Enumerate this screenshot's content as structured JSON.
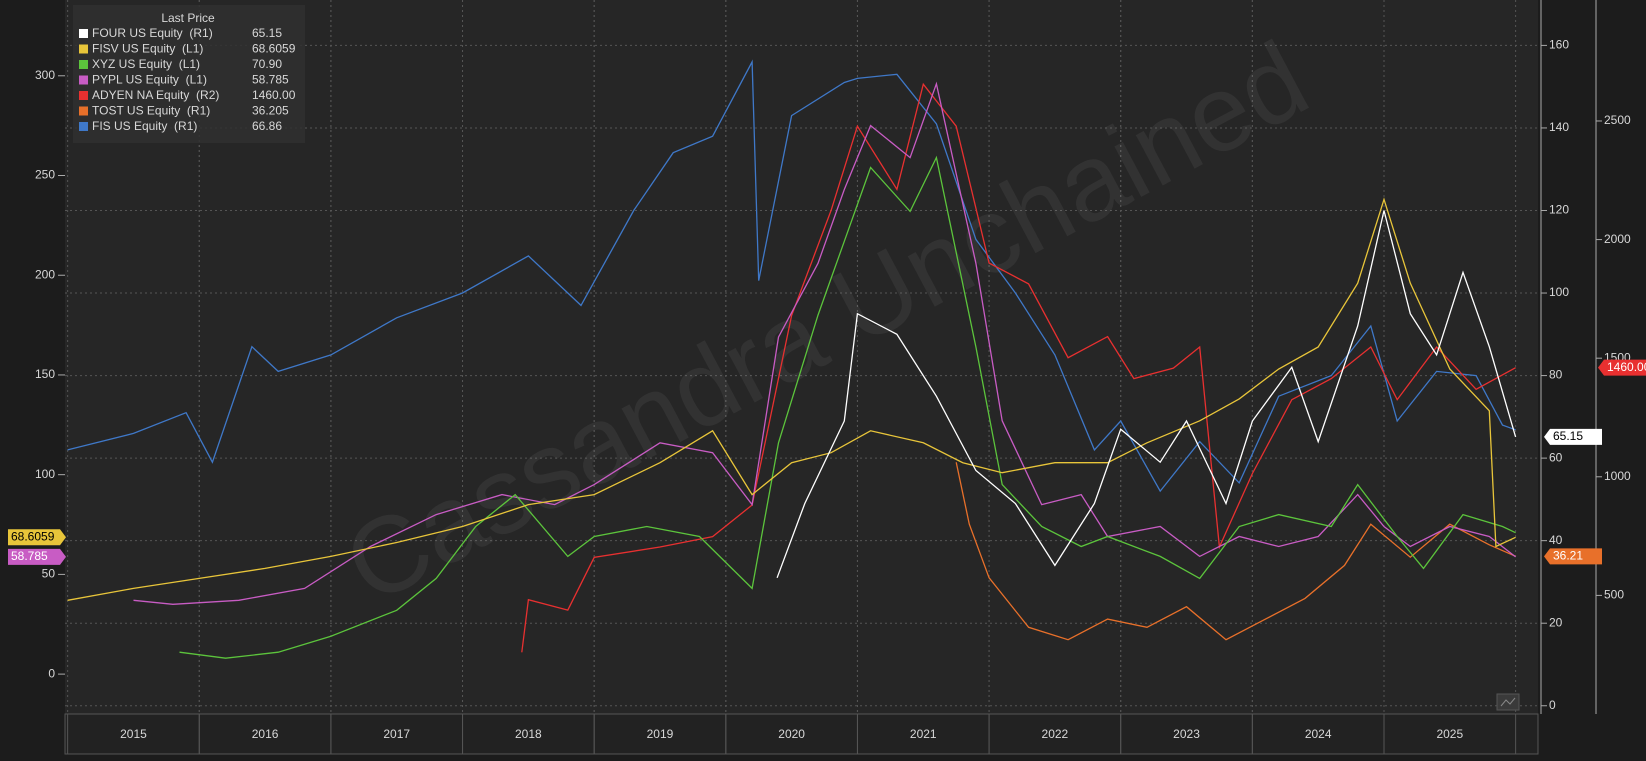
{
  "chart_data": {
    "type": "line",
    "legend_title": "Last Price",
    "watermark": "Cassandra Unchained",
    "xlim": [
      2014.98,
      2026.17
    ],
    "xticks": [
      {
        "value": 2015.5,
        "label": "2015"
      },
      {
        "value": 2016.5,
        "label": "2016"
      },
      {
        "value": 2017.5,
        "label": "2017"
      },
      {
        "value": 2018.5,
        "label": "2018"
      },
      {
        "value": 2019.5,
        "label": "2019"
      },
      {
        "value": 2020.5,
        "label": "2020"
      },
      {
        "value": 2021.5,
        "label": "2021"
      },
      {
        "value": 2022.5,
        "label": "2022"
      },
      {
        "value": 2023.5,
        "label": "2023"
      },
      {
        "value": 2024.5,
        "label": "2024"
      },
      {
        "value": 2025.5,
        "label": "2025"
      }
    ],
    "ylim": [
      -20,
      338
    ],
    "yticks": [
      0,
      50,
      100,
      150,
      200,
      250,
      300
    ],
    "y2lim": [
      -2,
      171
    ],
    "y2ticks": [
      0,
      20,
      40,
      60,
      80,
      100,
      120,
      140,
      160
    ],
    "y3lim": [
      0,
      3010
    ],
    "y3ticks": [
      500,
      1000,
      1500,
      2000,
      2500
    ],
    "grid": true,
    "legend": "top-left",
    "series": [
      {
        "name": "FOUR US Equity  (R1)",
        "legend_value": "65.15",
        "tag": "65.15",
        "color": "#ffffff",
        "axis": "y2",
        "x": [
          2020.39,
          2020.6,
          2020.9,
          2021.0,
          2021.3,
          2021.6,
          2021.9,
          2022.2,
          2022.5,
          2022.8,
          2023.0,
          2023.3,
          2023.5,
          2023.8,
          2024.0,
          2024.3,
          2024.5,
          2024.8,
          2025.0,
          2025.2,
          2025.4,
          2025.6,
          2025.8,
          2026.0
        ],
        "values": [
          31,
          49,
          69,
          95,
          90,
          75,
          57,
          49,
          34,
          49,
          67,
          59,
          69,
          49,
          69,
          82,
          64,
          92,
          120,
          95,
          85,
          105,
          87,
          65.15
        ]
      },
      {
        "name": "FISV US Equity  (L1)",
        "legend_value": "68.6059",
        "tag": "68.6059",
        "color": "#e8c53a",
        "axis": "y",
        "x": [
          2015.0,
          2015.5,
          2016.0,
          2016.5,
          2017.0,
          2017.5,
          2018.0,
          2018.5,
          2019.0,
          2019.5,
          2019.9,
          2020.2,
          2020.5,
          2020.8,
          2021.1,
          2021.5,
          2021.8,
          2022.1,
          2022.5,
          2022.9,
          2023.2,
          2023.6,
          2023.9,
          2024.2,
          2024.5,
          2024.8,
          2025.0,
          2025.2,
          2025.5,
          2025.8,
          2025.85,
          2026.0
        ],
        "values": [
          37,
          43,
          48,
          53,
          59,
          66,
          74,
          85,
          90,
          106,
          122,
          90,
          106,
          111,
          122,
          116,
          106,
          101,
          106,
          106,
          116,
          127,
          138,
          153,
          164,
          196,
          238,
          196,
          153,
          132,
          64,
          68.6059
        ]
      },
      {
        "name": "XYZ US Equity  (L1)",
        "legend_value": "70.90",
        "color": "#5cc43c",
        "axis": "y",
        "x": [
          2015.85,
          2016.2,
          2016.6,
          2017.0,
          2017.5,
          2017.8,
          2018.1,
          2018.4,
          2018.8,
          2019.0,
          2019.4,
          2019.8,
          2020.2,
          2020.4,
          2020.7,
          2020.9,
          2021.1,
          2021.4,
          2021.6,
          2021.9,
          2022.1,
          2022.4,
          2022.7,
          2022.9,
          2023.3,
          2023.6,
          2023.9,
          2024.2,
          2024.6,
          2024.8,
          2025.1,
          2025.3,
          2025.6,
          2025.9,
          2026.0
        ],
        "values": [
          11,
          8,
          11,
          19,
          32,
          48,
          74,
          90,
          59,
          69,
          74,
          69,
          43,
          116,
          180,
          217,
          254,
          232,
          259,
          164,
          95,
          74,
          64,
          69,
          59,
          48,
          74,
          80,
          74,
          95,
          69,
          53,
          80,
          74,
          70.9
        ]
      },
      {
        "name": "PYPL US Equity  (L1)",
        "legend_value": "58.785",
        "tag": "58.785",
        "color": "#c85cc4",
        "axis": "y",
        "x": [
          2015.5,
          2015.8,
          2016.3,
          2016.8,
          2017.3,
          2017.8,
          2018.3,
          2018.7,
          2019.0,
          2019.5,
          2019.9,
          2020.2,
          2020.4,
          2020.7,
          2020.9,
          2021.1,
          2021.4,
          2021.6,
          2021.9,
          2022.1,
          2022.4,
          2022.7,
          2022.9,
          2023.3,
          2023.6,
          2023.9,
          2024.2,
          2024.5,
          2024.8,
          2025.0,
          2025.2,
          2025.5,
          2025.8,
          2026.0
        ],
        "values": [
          37,
          35,
          37,
          43,
          64,
          80,
          90,
          85,
          95,
          116,
          111,
          85,
          169,
          206,
          243,
          275,
          259,
          296,
          206,
          127,
          85,
          90,
          69,
          74,
          59,
          69,
          64,
          69,
          90,
          74,
          64,
          74,
          69,
          58.785
        ]
      },
      {
        "name": "ADYEN NA Equity  (R2)",
        "legend_value": "1460.00",
        "tag": "1460.00",
        "color": "#e83030",
        "axis": "y3",
        "x": [
          2018.45,
          2018.5,
          2018.8,
          2019.0,
          2019.5,
          2019.9,
          2020.2,
          2020.5,
          2020.8,
          2021.0,
          2021.3,
          2021.5,
          2021.75,
          2022.0,
          2022.3,
          2022.6,
          2022.9,
          2023.1,
          2023.4,
          2023.6,
          2023.75,
          2024.0,
          2024.3,
          2024.6,
          2024.9,
          2025.1,
          2025.4,
          2025.7,
          2026.0
        ],
        "values": [
          260,
          482,
          438,
          660,
          704,
          748,
          881,
          1680,
          2123,
          2478,
          2212,
          2655,
          2478,
          1901,
          1813,
          1502,
          1591,
          1414,
          1458,
          1547,
          704,
          1014,
          1325,
          1414,
          1547,
          1325,
          1547,
          1369,
          1460
        ]
      },
      {
        "name": "TOST US Equity  (R1)",
        "legend_value": "36.205",
        "tag": "36.21",
        "color": "#e8702a",
        "axis": "y2",
        "x": [
          2021.75,
          2021.85,
          2022.0,
          2022.3,
          2022.6,
          2022.9,
          2023.2,
          2023.5,
          2023.8,
          2024.1,
          2024.4,
          2024.7,
          2024.9,
          2025.2,
          2025.5,
          2025.8,
          2026.0
        ],
        "values": [
          59,
          44,
          31,
          19,
          16,
          21,
          19,
          24,
          16,
          21,
          26,
          34,
          44,
          36,
          44,
          39,
          36.205
        ]
      },
      {
        "name": "FIS US Equity  (R1)",
        "legend_value": "66.86",
        "color": "#3f78c8",
        "axis": "y2",
        "x": [
          2015.0,
          2015.5,
          2015.9,
          2016.1,
          2016.4,
          2016.6,
          2017.0,
          2017.5,
          2018.0,
          2018.5,
          2018.9,
          2019.3,
          2019.6,
          2019.9,
          2020.2,
          2020.25,
          2020.5,
          2020.9,
          2021.0,
          2021.3,
          2021.6,
          2021.9,
          2022.2,
          2022.5,
          2022.8,
          2023.0,
          2023.3,
          2023.6,
          2023.9,
          2024.2,
          2024.6,
          2024.9,
          2025.1,
          2025.4,
          2025.7,
          2025.9,
          2026.0
        ],
        "values": [
          62,
          66,
          71,
          59,
          87,
          81,
          85,
          94,
          100,
          109,
          97,
          120,
          134,
          138,
          156,
          103,
          143,
          151,
          152,
          153,
          141,
          113,
          100,
          85,
          62,
          69,
          52,
          64,
          54,
          75,
          80,
          92,
          69,
          81,
          80,
          68,
          66.86
        ]
      }
    ]
  }
}
